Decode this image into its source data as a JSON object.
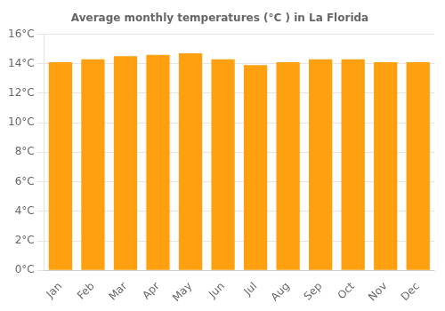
{
  "chart_data": {
    "type": "bar",
    "title": "Average monthly temperatures (°C ) in La Florida",
    "categories": [
      "Jan",
      "Feb",
      "Mar",
      "Apr",
      "May",
      "Jun",
      "Jul",
      "Aug",
      "Sep",
      "Oct",
      "Nov",
      "Dec"
    ],
    "values": [
      14.1,
      14.3,
      14.5,
      14.6,
      14.7,
      14.3,
      13.9,
      14.1,
      14.3,
      14.3,
      14.1,
      14.1
    ],
    "color": "#FFA010",
    "ylim": [
      0,
      16
    ],
    "yticks": [
      {
        "value": 0,
        "label": "0°C"
      },
      {
        "value": 2,
        "label": "2°C"
      },
      {
        "value": 4,
        "label": "4°C"
      },
      {
        "value": 6,
        "label": "6°C"
      },
      {
        "value": 8,
        "label": "8°C"
      },
      {
        "value": 10,
        "label": "10°C"
      },
      {
        "value": 12,
        "label": "12°C"
      },
      {
        "value": 14,
        "label": "14°C"
      },
      {
        "value": 16,
        "label": "16°C"
      }
    ],
    "grid": true
  }
}
